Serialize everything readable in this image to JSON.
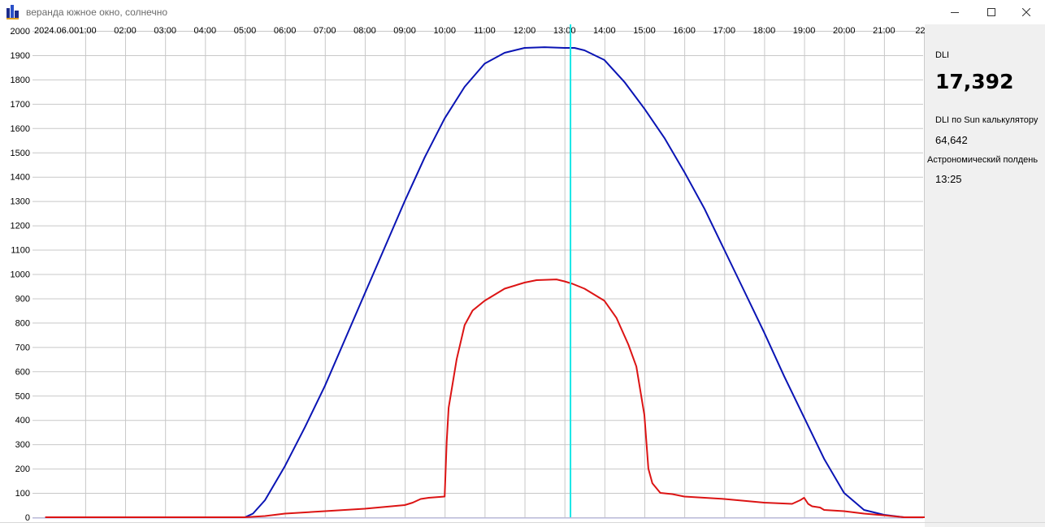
{
  "window": {
    "title": "веранда южное окно, солнечно",
    "app_icon": "chart-bars-icon",
    "controls": [
      "minimize-icon",
      "maximize-icon",
      "close-icon"
    ]
  },
  "side_panel": {
    "dli_label": "DLI",
    "dli_value": "17,392",
    "sun_calc_label": "DLI по Sun калькулятору",
    "sun_calc_value": "64,642",
    "noon_label": "Астрономический полдень",
    "noon_value": "13:25"
  },
  "chart_data": {
    "type": "line",
    "start_label": "2024.06.0",
    "x_tick_labels": [
      "01:00",
      "02:00",
      "03:00",
      "04:00",
      "05:00",
      "06:00",
      "07:00",
      "08:00",
      "09:00",
      "10:00",
      "11:00",
      "12:00",
      "13:00",
      "14:00",
      "15:00",
      "16:00",
      "17:00",
      "18:00",
      "19:00",
      "20:00",
      "21:00",
      "22:0"
    ],
    "x_range_hours": [
      0,
      23
    ],
    "y_tick_labels": [
      "2000",
      "1900",
      "1800",
      "1700",
      "1600",
      "1500",
      "1400",
      "1300",
      "1200",
      "1100",
      "1000",
      "900",
      "800",
      "700",
      "600",
      "500",
      "400",
      "300",
      "200",
      "100",
      "0"
    ],
    "ylim": [
      0,
      2000
    ],
    "grid": true,
    "cursor_hour": 13.15,
    "colors": {
      "theoretical": "#0a14b4",
      "measured": "#dc1414",
      "cursor": "#19e6e6",
      "grid": "#c8c8c8",
      "baseline": "#b0b0e0"
    },
    "series": [
      {
        "color": "#0a14b4",
        "x": [
          0,
          5,
          5.2,
          5.5,
          6,
          6.5,
          7,
          7.5,
          8,
          8.5,
          9,
          9.5,
          10,
          10.5,
          11,
          11.5,
          12,
          12.5,
          13,
          13.25,
          13.5,
          14,
          14.5,
          15,
          15.5,
          16,
          16.5,
          17,
          17.5,
          18,
          18.5,
          19,
          19.5,
          20,
          20.5,
          21,
          21.25,
          21.5,
          23
        ],
        "y": [
          0,
          0,
          15,
          70,
          210,
          370,
          540,
          730,
          920,
          1110,
          1300,
          1480,
          1640,
          1770,
          1865,
          1910,
          1930,
          1933,
          1930,
          1930,
          1920,
          1880,
          1790,
          1680,
          1560,
          1420,
          1270,
          1100,
          930,
          760,
          580,
          410,
          240,
          100,
          30,
          10,
          5,
          0,
          0
        ]
      },
      {
        "color": "#dc1414",
        "x": [
          0,
          5,
          5.5,
          6,
          7,
          8,
          9,
          9.2,
          9.4,
          9.6,
          10,
          10.05,
          10.1,
          10.3,
          10.5,
          10.7,
          11,
          11.5,
          12,
          12.3,
          12.8,
          13,
          13.2,
          13.5,
          14,
          14.3,
          14.6,
          14.8,
          15,
          15.1,
          15.2,
          15.4,
          15.7,
          16,
          17,
          18,
          18.7,
          18.9,
          19,
          19.1,
          19.2,
          19.4,
          19.5,
          20,
          20.5,
          21,
          21.5,
          23
        ],
        "y": [
          0,
          0,
          5,
          15,
          25,
          35,
          50,
          60,
          75,
          80,
          85,
          310,
          450,
          650,
          790,
          850,
          890,
          940,
          965,
          975,
          978,
          970,
          960,
          940,
          890,
          820,
          710,
          620,
          420,
          200,
          140,
          100,
          95,
          85,
          75,
          60,
          55,
          70,
          80,
          55,
          45,
          40,
          30,
          25,
          15,
          8,
          0,
          0
        ]
      }
    ]
  }
}
